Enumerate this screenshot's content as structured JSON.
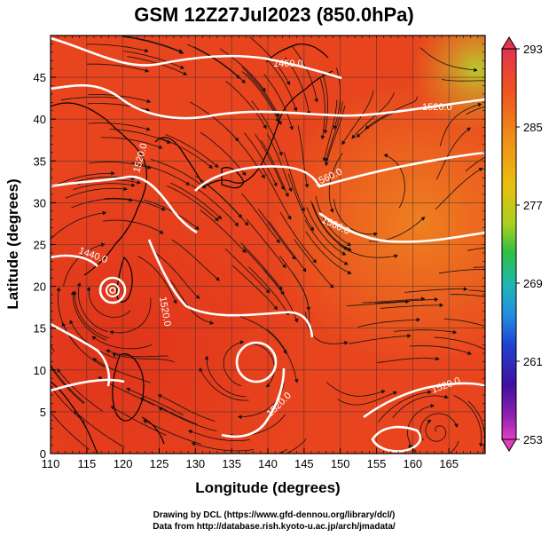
{
  "title": "GSM 12Z27Jul2023 (850.0hPa)",
  "x_axis": {
    "label": "Longitude (degrees)",
    "ticks": [
      "110",
      "115",
      "120",
      "125",
      "130",
      "135",
      "140",
      "145",
      "150",
      "155",
      "160",
      "165"
    ]
  },
  "y_axis": {
    "label": "Latitude  (degrees)",
    "ticks": [
      "0",
      "5",
      "10",
      "15",
      "20",
      "25",
      "30",
      "35",
      "40",
      "45"
    ]
  },
  "colorbar": {
    "ticks": [
      "293",
      "285",
      "277",
      "269",
      "261",
      "253"
    ],
    "colors": [
      "#e0344f",
      "#f07020",
      "#f0b010",
      "#c8d820",
      "#40c020",
      "#20b8a0",
      "#2090e0",
      "#2040d0",
      "#3010a0",
      "#9020b0",
      "#e040c0"
    ]
  },
  "contour_labels": [
    "1460.0",
    "1520.0",
    "1520.0",
    "1560.0",
    "1560.0",
    "1440.0",
    "1520.0",
    "1520.0",
    "1520.0"
  ],
  "credits": {
    "line1": "Drawing by DCL (https://www.gfd-dennou.org/library/dcl/)",
    "line2": "Data from http://database.rish.kyoto-u.ac.jp/arch/jmadata/"
  },
  "map_colors": {
    "base": "#e8401e",
    "warm": "#e03020",
    "cool": "#f07820",
    "greenish": "#b8d030",
    "contour": "#ffffff",
    "stream": "#111111"
  }
}
